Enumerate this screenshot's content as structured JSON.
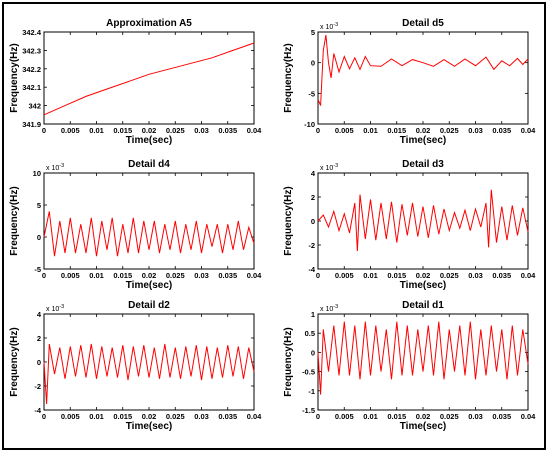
{
  "chart_data": [
    {
      "type": "line",
      "title": "Approximation A5",
      "xlabel": "Time(sec)",
      "ylabel": "Frequency(Hz)",
      "xlim": [
        0,
        0.04
      ],
      "ylim": [
        341.9,
        342.4
      ],
      "x_ticks": [
        "0",
        "0.005",
        "0.01",
        "0.015",
        "0.02",
        "0.025",
        "0.03",
        "0.035",
        "0.04"
      ],
      "y_ticks": [
        "341.9",
        "342",
        "342.1",
        "342.2",
        "342.3",
        "342.4"
      ],
      "y_exponent": "",
      "line_color": "#ff0000",
      "series": [
        {
          "x": [
            0,
            0.004,
            0.008,
            0.012,
            0.016,
            0.02,
            0.024,
            0.028,
            0.032,
            0.036,
            0.04
          ],
          "y": [
            341.95,
            342.0,
            342.05,
            342.09,
            342.13,
            342.17,
            342.2,
            342.23,
            342.26,
            342.3,
            342.34
          ]
        }
      ]
    },
    {
      "type": "line",
      "title": "Detail d5",
      "xlabel": "Time(sec)",
      "ylabel": "Frequency(Hz)",
      "xlim": [
        0,
        0.04
      ],
      "ylim": [
        -10,
        5
      ],
      "x_ticks": [
        "0",
        "0.005",
        "0.01",
        "0.015",
        "0.02",
        "0.025",
        "0.03",
        "0.035",
        "0.04"
      ],
      "y_ticks": [
        "-10",
        "-5",
        "0",
        "5"
      ],
      "y_exponent": "x 10^-3",
      "line_color": "#ff0000",
      "series": [
        {
          "x": [
            0,
            0.0005,
            0.001,
            0.0015,
            0.002,
            0.0025,
            0.003,
            0.004,
            0.005,
            0.006,
            0.007,
            0.008,
            0.009,
            0.01,
            0.012,
            0.014,
            0.016,
            0.018,
            0.02,
            0.022,
            0.024,
            0.026,
            0.028,
            0.03,
            0.032,
            0.0335,
            0.035,
            0.0365,
            0.038,
            0.039,
            0.04
          ],
          "y": [
            -6,
            -7,
            2,
            4.5,
            0,
            -2.5,
            1.5,
            -1.5,
            1,
            -1,
            0.8,
            -1.1,
            1,
            -0.5,
            -0.6,
            0.6,
            -0.5,
            0.5,
            0,
            -0.6,
            0.5,
            -0.6,
            0.6,
            -0.5,
            0.9,
            -1.1,
            0.3,
            -0.5,
            0.7,
            -0.3,
            0.6
          ]
        }
      ]
    },
    {
      "type": "line",
      "title": "Detail d4",
      "xlabel": "Time(sec)",
      "ylabel": "Frequency(Hz)",
      "xlim": [
        0,
        0.04
      ],
      "ylim": [
        -5,
        10
      ],
      "x_ticks": [
        "0",
        "0.005",
        "0.01",
        "0.015",
        "0.02",
        "0.025",
        "0.03",
        "0.035",
        "0.04"
      ],
      "y_ticks": [
        "-5",
        "0",
        "5",
        "10"
      ],
      "y_exponent": "x 10^-3",
      "line_color": "#ff0000",
      "series": [
        {
          "x": [
            0,
            0.001,
            0.002,
            0.003,
            0.004,
            0.005,
            0.006,
            0.007,
            0.008,
            0.009,
            0.01,
            0.011,
            0.012,
            0.013,
            0.014,
            0.015,
            0.016,
            0.017,
            0.018,
            0.019,
            0.02,
            0.021,
            0.022,
            0.023,
            0.024,
            0.025,
            0.026,
            0.027,
            0.028,
            0.029,
            0.03,
            0.031,
            0.032,
            0.033,
            0.034,
            0.035,
            0.036,
            0.037,
            0.038,
            0.039,
            0.04
          ],
          "y": [
            0,
            4,
            -3,
            2.5,
            -2.5,
            3,
            -2.5,
            2,
            -2.5,
            3,
            -3,
            2.5,
            -2,
            3,
            -3,
            2,
            -2.5,
            3,
            -2.5,
            2.5,
            -2,
            2.5,
            -2.5,
            2,
            -2,
            2.5,
            -2.5,
            2,
            -2,
            2.5,
            -2.5,
            2,
            -1.5,
            2,
            -2.5,
            2,
            -2,
            2.5,
            -2,
            1.5,
            -1
          ]
        }
      ]
    },
    {
      "type": "line",
      "title": "Detail d3",
      "xlabel": "Time(sec)",
      "ylabel": "Frequency(Hz)",
      "xlim": [
        0,
        0.04
      ],
      "ylim": [
        -4,
        4
      ],
      "x_ticks": [
        "0",
        "0.005",
        "0.01",
        "0.015",
        "0.02",
        "0.025",
        "0.03",
        "0.035",
        "0.04"
      ],
      "y_ticks": [
        "-4",
        "-2",
        "0",
        "2",
        "4"
      ],
      "y_exponent": "x 10^-3",
      "line_color": "#ff0000",
      "series": [
        {
          "x": [
            0,
            0.001,
            0.002,
            0.003,
            0.004,
            0.005,
            0.006,
            0.007,
            0.0075,
            0.008,
            0.009,
            0.01,
            0.011,
            0.012,
            0.013,
            0.014,
            0.015,
            0.016,
            0.017,
            0.018,
            0.019,
            0.02,
            0.021,
            0.022,
            0.023,
            0.024,
            0.025,
            0.026,
            0.027,
            0.028,
            0.029,
            0.03,
            0.031,
            0.032,
            0.0325,
            0.033,
            0.034,
            0.035,
            0.036,
            0.037,
            0.038,
            0.039,
            0.04
          ],
          "y": [
            0,
            0.5,
            -0.5,
            0.8,
            -0.8,
            0.6,
            -1,
            1.5,
            -2.5,
            2.2,
            -1.5,
            1.8,
            -1.6,
            1.5,
            -1.5,
            1.6,
            -1.8,
            1.4,
            -1.2,
            1.5,
            -1.3,
            1.2,
            -1.4,
            1.3,
            -1.1,
            1,
            -0.8,
            0.7,
            -0.6,
            0.9,
            -0.8,
            1,
            -0.5,
            1.5,
            -2.2,
            2.6,
            -1.8,
            1.2,
            -1.6,
            1.3,
            -1.2,
            1.1,
            -0.9
          ]
        }
      ]
    },
    {
      "type": "line",
      "title": "Detail d2",
      "xlabel": "Time(sec)",
      "ylabel": "Frequency(Hz)",
      "xlim": [
        0,
        0.04
      ],
      "ylim": [
        -4,
        4
      ],
      "x_ticks": [
        "0",
        "0.005",
        "0.01",
        "0.015",
        "0.02",
        "0.025",
        "0.03",
        "0.035",
        "0.04"
      ],
      "y_ticks": [
        "-4",
        "-2",
        "0",
        "2",
        "4"
      ],
      "y_exponent": "x 10^-3",
      "line_color": "#ff0000",
      "series": [
        {
          "x": [
            0,
            0.0005,
            0.001,
            0.002,
            0.003,
            0.004,
            0.005,
            0.006,
            0.007,
            0.008,
            0.009,
            0.01,
            0.011,
            0.012,
            0.013,
            0.014,
            0.015,
            0.016,
            0.017,
            0.018,
            0.019,
            0.02,
            0.021,
            0.022,
            0.023,
            0.024,
            0.025,
            0.026,
            0.027,
            0.028,
            0.029,
            0.03,
            0.031,
            0.032,
            0.033,
            0.034,
            0.035,
            0.036,
            0.037,
            0.038,
            0.039,
            0.04
          ],
          "y": [
            0,
            -3.5,
            1.5,
            -1,
            1.2,
            -1.4,
            1.3,
            -1.2,
            1.4,
            -1.3,
            1.5,
            -1.4,
            1.3,
            -1.2,
            1.2,
            -1.3,
            1.4,
            -1.5,
            1.3,
            -1.2,
            1.4,
            -1.3,
            1.2,
            -1.4,
            1.5,
            -1.3,
            1.2,
            -1.4,
            1.3,
            -1.2,
            1.4,
            -1.5,
            1.3,
            -1.4,
            1.2,
            -1.3,
            1.4,
            -1.2,
            1.3,
            -1.4,
            1.2,
            -0.8
          ]
        }
      ]
    },
    {
      "type": "line",
      "title": "Detail d1",
      "xlabel": "Time(sec)",
      "ylabel": "Frequency(Hz)",
      "xlim": [
        0,
        0.04
      ],
      "ylim": [
        -1.5,
        1
      ],
      "x_ticks": [
        "0",
        "0.005",
        "0.01",
        "0.015",
        "0.02",
        "0.025",
        "0.03",
        "0.035",
        "0.04"
      ],
      "y_ticks": [
        "-1.5",
        "-1",
        "-0.5",
        "0",
        "0.5",
        "1"
      ],
      "y_exponent": "x 10^-3",
      "line_color": "#ff0000",
      "series": [
        {
          "x": [
            0,
            0.0005,
            0.001,
            0.002,
            0.003,
            0.004,
            0.005,
            0.006,
            0.007,
            0.008,
            0.009,
            0.01,
            0.011,
            0.012,
            0.013,
            0.014,
            0.015,
            0.016,
            0.017,
            0.018,
            0.019,
            0.02,
            0.021,
            0.022,
            0.023,
            0.024,
            0.025,
            0.026,
            0.027,
            0.028,
            0.029,
            0.03,
            0.031,
            0.032,
            0.033,
            0.034,
            0.035,
            0.036,
            0.037,
            0.038,
            0.039,
            0.04
          ],
          "y": [
            0,
            -1.1,
            0.6,
            -0.5,
            0.7,
            -0.6,
            0.8,
            -0.6,
            0.7,
            -0.7,
            0.8,
            -0.6,
            0.7,
            -0.5,
            0.6,
            -0.7,
            0.8,
            -0.6,
            0.7,
            -0.6,
            0.6,
            -0.5,
            0.7,
            -0.6,
            0.8,
            -0.7,
            0.6,
            -0.5,
            0.7,
            -0.6,
            0.8,
            -0.7,
            0.6,
            -0.6,
            0.7,
            -0.5,
            0.6,
            -0.7,
            0.7,
            -0.6,
            0.6,
            -0.3
          ]
        }
      ]
    }
  ]
}
